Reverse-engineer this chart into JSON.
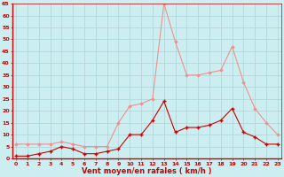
{
  "hours": [
    0,
    1,
    2,
    3,
    4,
    5,
    6,
    7,
    8,
    9,
    10,
    11,
    12,
    13,
    14,
    15,
    16,
    17,
    18,
    19,
    20,
    21,
    22,
    23
  ],
  "wind_avg": [
    1,
    1,
    2,
    3,
    5,
    4,
    2,
    2,
    3,
    4,
    10,
    10,
    16,
    24,
    11,
    13,
    13,
    14,
    16,
    21,
    11,
    9,
    6,
    6
  ],
  "wind_gust": [
    6,
    6,
    6,
    6,
    7,
    6,
    5,
    5,
    5,
    15,
    22,
    23,
    25,
    65,
    49,
    35,
    35,
    36,
    37,
    47,
    32,
    21,
    15,
    10
  ],
  "bg_color": "#cceef0",
  "grid_color": "#aad4d6",
  "avg_color": "#cc0000",
  "gust_color": "#f09090",
  "xlabel": "Vent moyen/en rafales ( km/h )",
  "xlabel_color": "#cc0000",
  "tick_color": "#cc0000",
  "ylim": [
    0,
    65
  ],
  "yticks": [
    0,
    5,
    10,
    15,
    20,
    25,
    30,
    35,
    40,
    45,
    50,
    55,
    60,
    65
  ]
}
